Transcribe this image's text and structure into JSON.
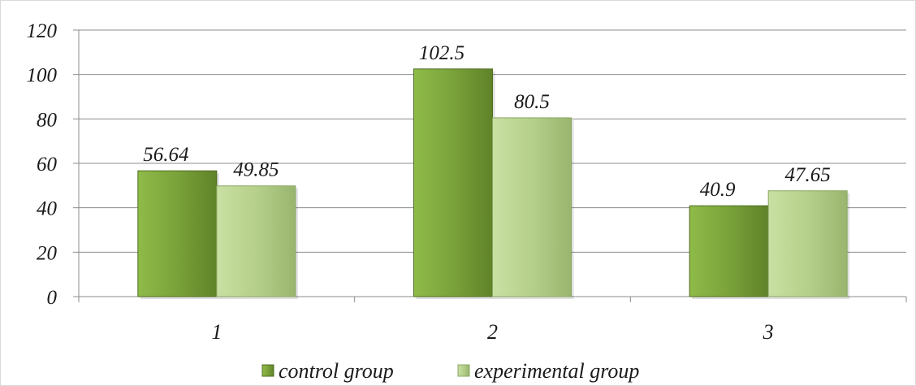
{
  "chart_data": {
    "type": "bar",
    "categories": [
      "1",
      "2",
      "3"
    ],
    "series": [
      {
        "name": "control group",
        "values": [
          56.64,
          102.5,
          40.9
        ],
        "labels": [
          "56.64",
          "102.5",
          "40.9"
        ],
        "color": "#7aa23a"
      },
      {
        "name": "experimental group",
        "values": [
          49.85,
          80.5,
          47.65
        ],
        "labels": [
          "49.85",
          "80.5",
          "47.65"
        ],
        "color": "#b5d08a"
      }
    ],
    "yticks": [
      "0",
      "20",
      "40",
      "60",
      "80",
      "100",
      "120"
    ],
    "ylim": [
      0,
      120
    ],
    "grid": true,
    "legend_position": "bottom"
  }
}
